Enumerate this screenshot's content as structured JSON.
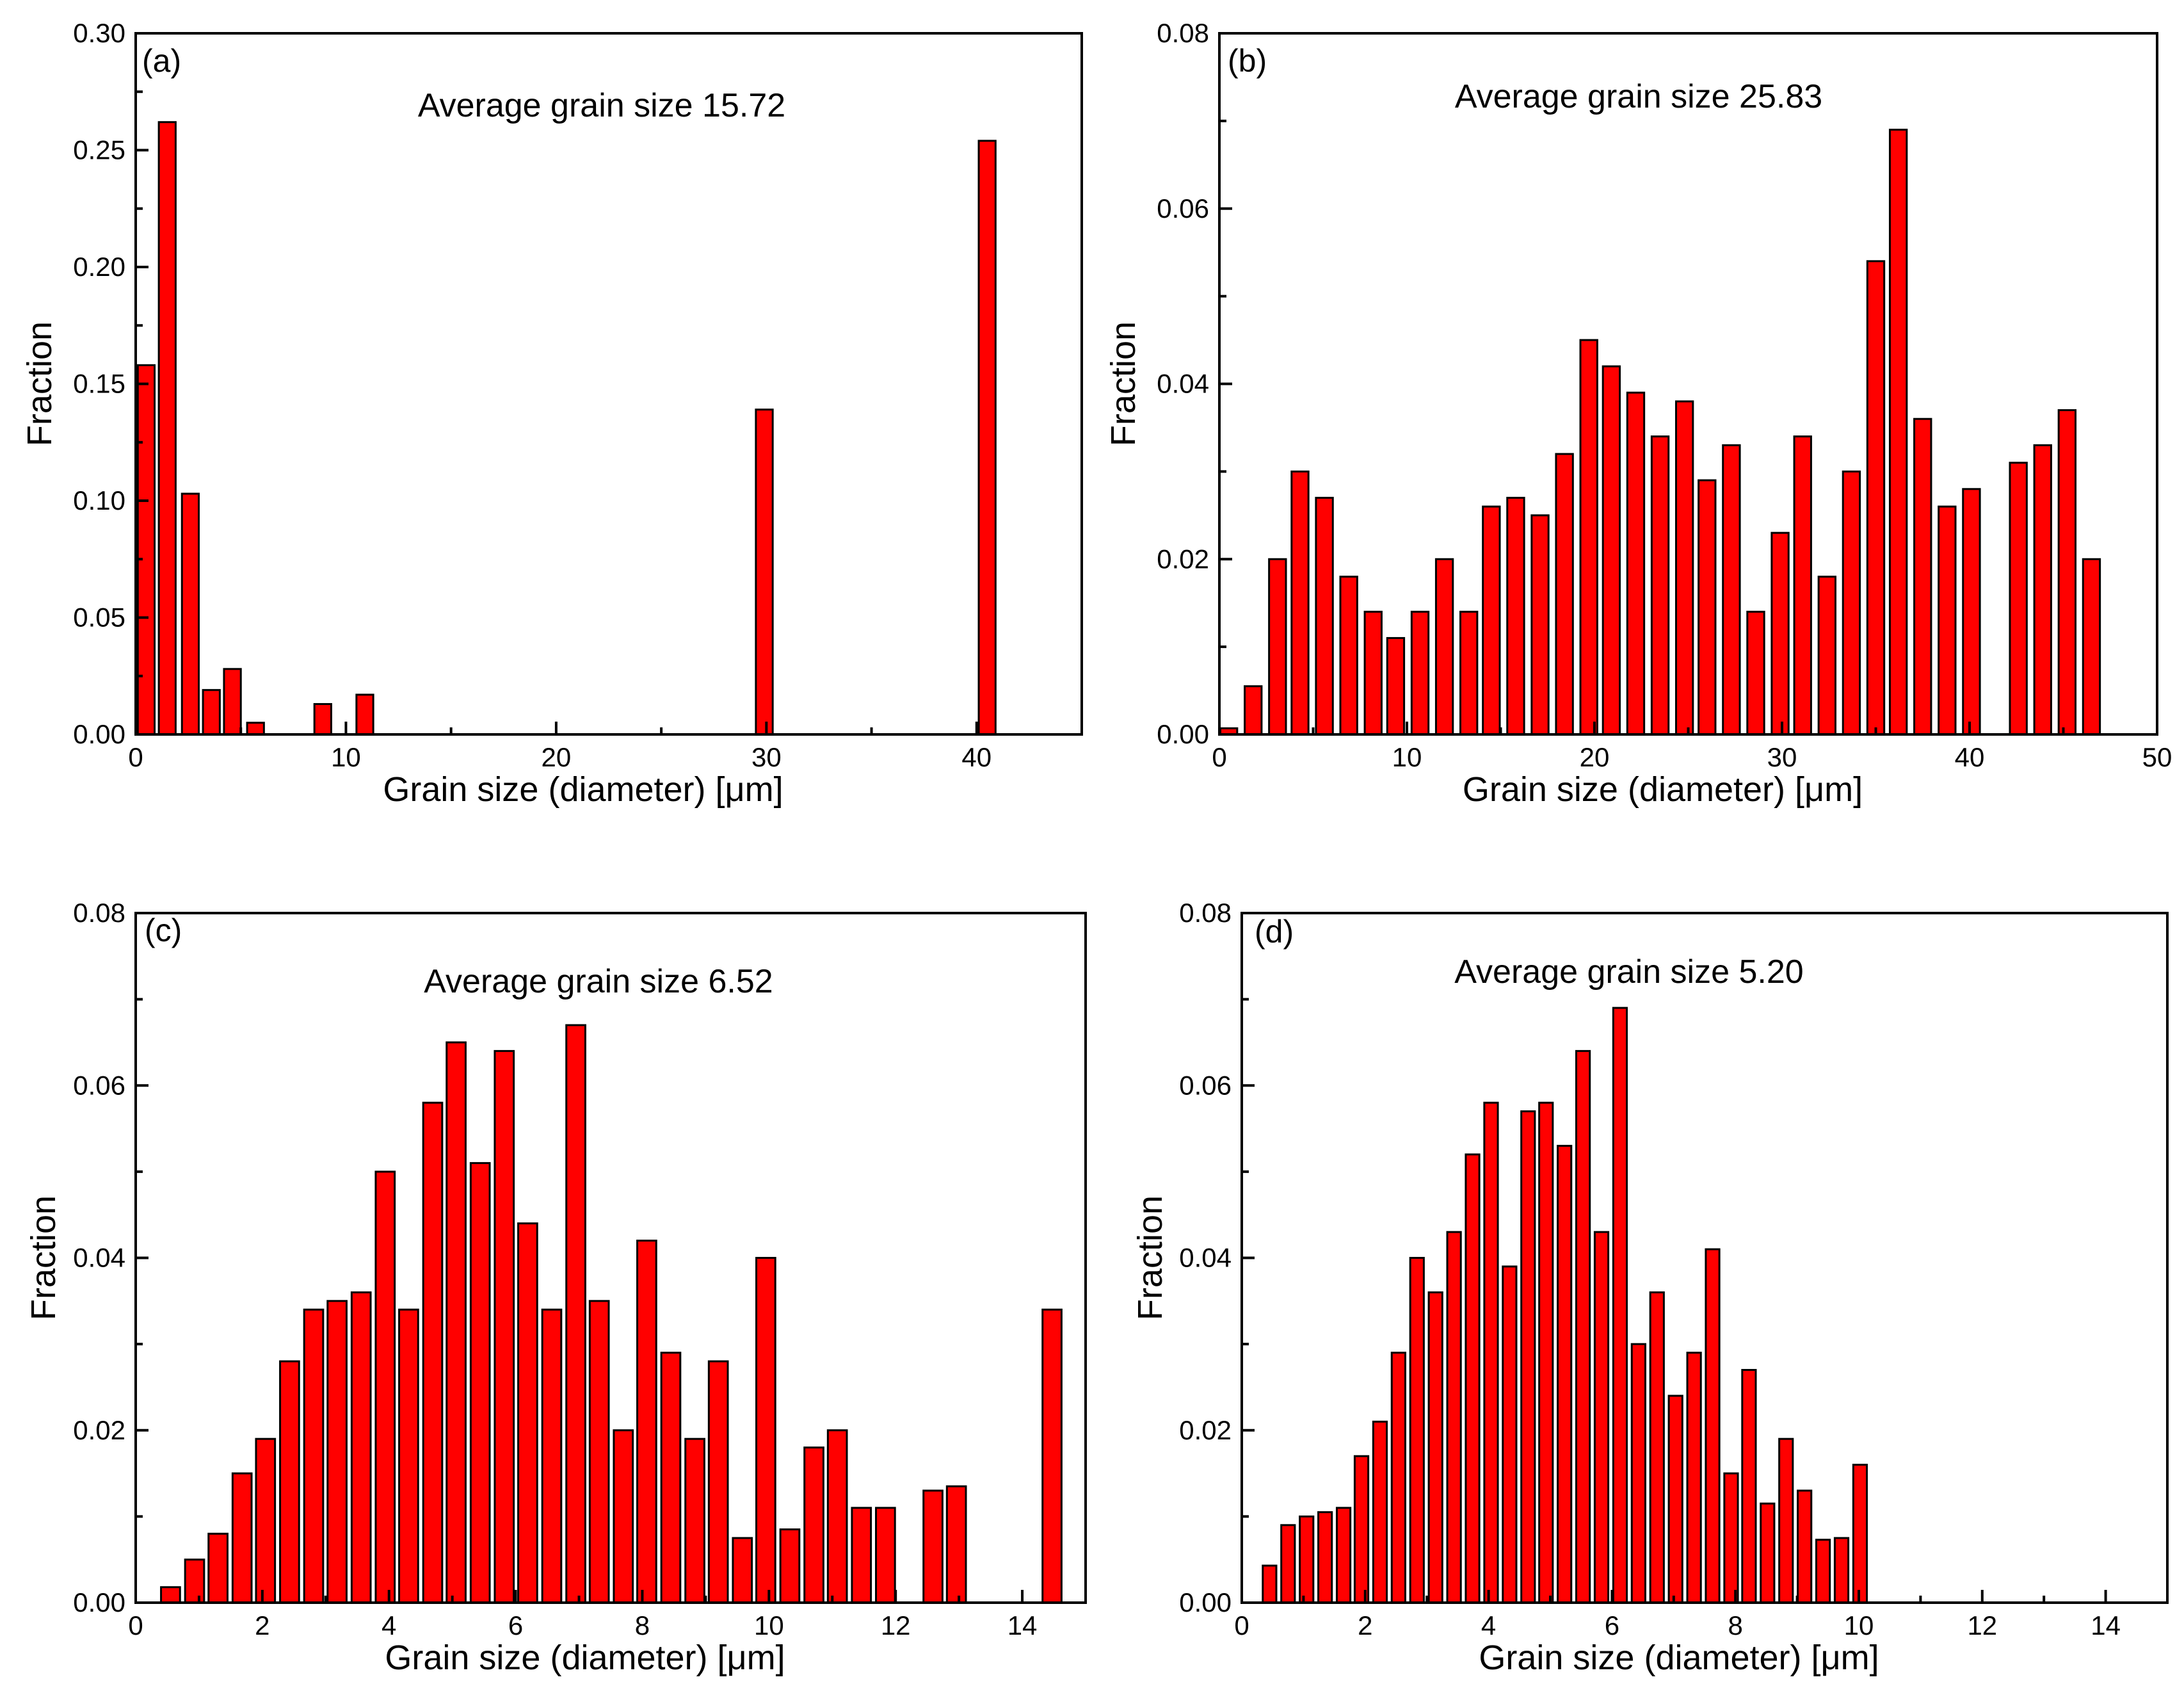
{
  "chart_data": [
    {
      "type": "bar",
      "panel_label": "(a)",
      "annotation": "Average grain size 15.72",
      "xlabel": "Grain size (diameter) [μm]",
      "ylabel": "Fraction",
      "xlim": [
        0,
        45
      ],
      "ylim": [
        0,
        0.3
      ],
      "xticks": [
        0,
        10,
        20,
        30,
        40
      ],
      "xtick_labels": [
        "0",
        "10",
        "20",
        "30",
        "40"
      ],
      "yticks": [
        0,
        0.05,
        0.1,
        0.15,
        0.2,
        0.25,
        0.3
      ],
      "ytick_labels": [
        "0.00",
        "0.05",
        "0.10",
        "0.15",
        "0.20",
        "0.25",
        "0.30"
      ],
      "bar_width": 0.8,
      "x": [
        0.5,
        1.5,
        2.6,
        3.6,
        4.6,
        5.7,
        8.9,
        10.9,
        29.9,
        40.5
      ],
      "values": [
        0.158,
        0.262,
        0.103,
        0.019,
        0.028,
        0.005,
        0.013,
        0.017,
        0.139,
        0.254
      ]
    },
    {
      "type": "bar",
      "panel_label": "(b)",
      "annotation": "Average grain size 25.83",
      "xlabel": "Grain size (diameter) [μm]",
      "ylabel": "Fraction",
      "xlim": [
        0,
        50
      ],
      "ylim": [
        0,
        0.08
      ],
      "xticks": [
        0,
        10,
        20,
        30,
        40,
        50
      ],
      "xtick_labels": [
        "0",
        "10",
        "20",
        "30",
        "40",
        "50"
      ],
      "yticks": [
        0,
        0.02,
        0.04,
        0.06,
        0.08
      ],
      "ytick_labels": [
        "0.00",
        "0.02",
        "0.04",
        "0.06",
        "0.08"
      ],
      "bar_width": 0.9,
      "x": [
        0.5,
        1.8,
        3.1,
        4.3,
        5.6,
        6.9,
        8.2,
        9.4,
        10.7,
        12.0,
        13.3,
        14.5,
        15.8,
        17.1,
        18.4,
        19.7,
        20.9,
        22.2,
        23.5,
        24.8,
        26.0,
        27.3,
        28.6,
        29.9,
        31.1,
        32.4,
        33.7,
        35.0,
        36.2,
        37.5,
        38.8,
        40.1,
        42.6,
        43.9,
        45.2,
        46.5
      ],
      "values": [
        0.0007,
        0.0055,
        0.02,
        0.03,
        0.027,
        0.018,
        0.014,
        0.011,
        0.014,
        0.02,
        0.014,
        0.026,
        0.027,
        0.025,
        0.032,
        0.045,
        0.042,
        0.039,
        0.034,
        0.038,
        0.029,
        0.033,
        0.014,
        0.023,
        0.034,
        0.018,
        0.03,
        0.054,
        0.069,
        0.036,
        0.026,
        0.028,
        0.031,
        0.033,
        0.037,
        0.02
      ]
    },
    {
      "type": "bar",
      "panel_label": "(c)",
      "annotation": "Average grain size 6.52",
      "xlabel": "Grain size (diameter) [μm]",
      "ylabel": "Fraction",
      "xlim": [
        0,
        15
      ],
      "ylim": [
        0,
        0.08
      ],
      "xticks": [
        0,
        2,
        4,
        6,
        8,
        10,
        12,
        14
      ],
      "xtick_labels": [
        "0",
        "2",
        "4",
        "6",
        "8",
        "10",
        "12",
        "14"
      ],
      "yticks": [
        0,
        0.02,
        0.04,
        0.06,
        0.08
      ],
      "ytick_labels": [
        "0.00",
        "0.02",
        "0.04",
        "0.06",
        "0.08"
      ],
      "bar_width": 0.3,
      "x": [
        0.55,
        0.93,
        1.3,
        1.68,
        2.05,
        2.43,
        2.81,
        3.18,
        3.56,
        3.94,
        4.31,
        4.69,
        5.06,
        5.44,
        5.82,
        6.19,
        6.57,
        6.95,
        7.32,
        7.7,
        8.07,
        8.45,
        8.83,
        9.2,
        9.58,
        9.95,
        10.33,
        10.71,
        11.08,
        11.46,
        11.84,
        12.59,
        12.96,
        14.47
      ],
      "values": [
        0.0018,
        0.005,
        0.008,
        0.015,
        0.019,
        0.028,
        0.034,
        0.035,
        0.036,
        0.05,
        0.034,
        0.058,
        0.065,
        0.051,
        0.064,
        0.044,
        0.034,
        0.067,
        0.035,
        0.02,
        0.042,
        0.029,
        0.019,
        0.028,
        0.0075,
        0.04,
        0.0085,
        0.018,
        0.02,
        0.011,
        0.011,
        0.013,
        0.0135,
        0.034
      ]
    },
    {
      "type": "bar",
      "panel_label": "(d)",
      "annotation": "Average grain size 5.20",
      "xlabel": "Grain size (diameter) [μm]",
      "ylabel": "Fraction",
      "xlim": [
        0,
        15
      ],
      "ylim": [
        0,
        0.08
      ],
      "xticks": [
        0,
        2,
        4,
        6,
        8,
        10,
        12,
        14
      ],
      "xtick_labels": [
        "0",
        "2",
        "4",
        "6",
        "8",
        "10",
        "12",
        "14"
      ],
      "yticks": [
        0,
        0.02,
        0.04,
        0.06,
        0.08
      ],
      "ytick_labels": [
        "0.00",
        "0.02",
        "0.04",
        "0.06",
        "0.08"
      ],
      "bar_width": 0.22,
      "x": [
        0.45,
        0.75,
        1.05,
        1.35,
        1.65,
        1.94,
        2.24,
        2.54,
        2.84,
        3.14,
        3.44,
        3.74,
        4.04,
        4.34,
        4.64,
        4.93,
        5.23,
        5.53,
        5.83,
        6.13,
        6.43,
        6.73,
        7.03,
        7.33,
        7.63,
        7.93,
        8.22,
        8.52,
        8.82,
        9.12,
        9.42,
        9.72,
        10.02
      ],
      "values": [
        0.0043,
        0.009,
        0.01,
        0.0105,
        0.011,
        0.017,
        0.021,
        0.029,
        0.04,
        0.036,
        0.043,
        0.052,
        0.058,
        0.039,
        0.057,
        0.058,
        0.053,
        0.064,
        0.043,
        0.069,
        0.03,
        0.036,
        0.024,
        0.029,
        0.041,
        0.015,
        0.027,
        0.0115,
        0.019,
        0.013,
        0.0073,
        0.0075,
        0.016
      ]
    }
  ]
}
